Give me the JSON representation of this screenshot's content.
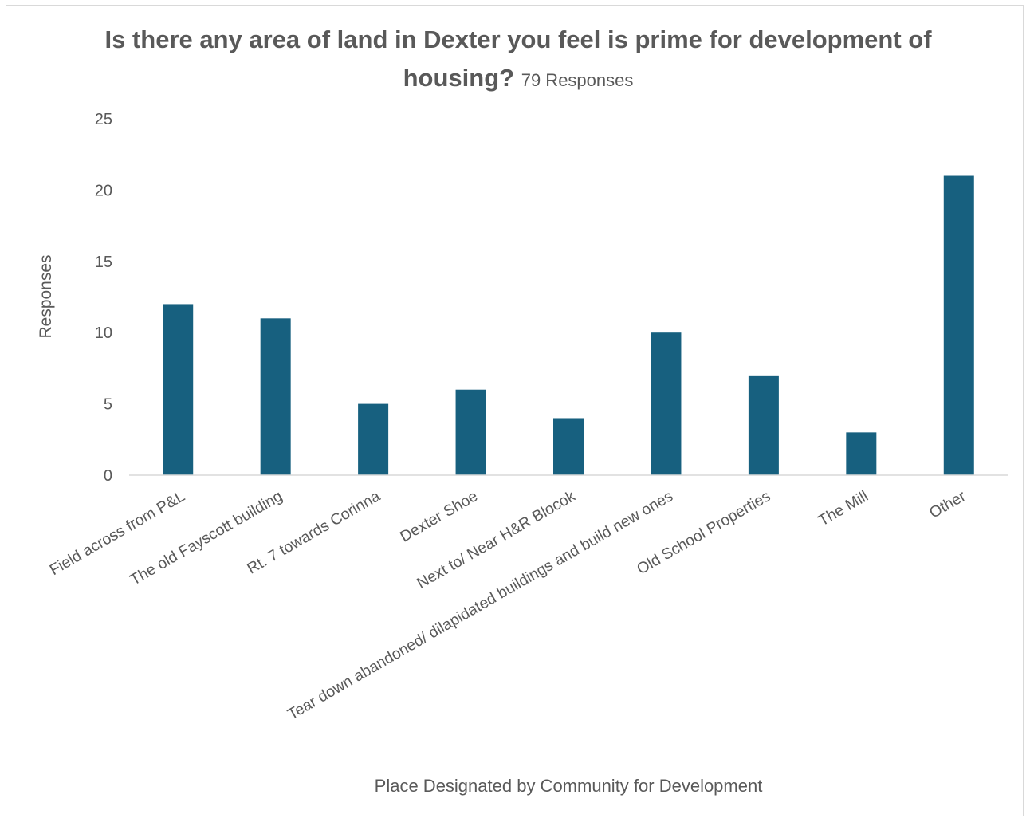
{
  "chart_data": {
    "type": "bar",
    "title": "Is there any area of land in Dexter you feel is prime for development of housing?",
    "subtitle": "79 Responses",
    "xlabel": "Place Designated by Community for Development",
    "ylabel": "Responses",
    "categories": [
      "Field across from P&L",
      "The old Fayscott building",
      "Rt. 7 towards Corinna",
      "Dexter Shoe",
      "Next to/ Near H&R Blocok",
      "Tear down abandoned/ dilapidated buildings and build new ones",
      "Old School Properties",
      "The Mill",
      "Other"
    ],
    "values": [
      12,
      11,
      5,
      6,
      4,
      10,
      7,
      3,
      21
    ],
    "ylim": [
      0,
      25
    ],
    "yticks": [
      "0",
      "5",
      "10",
      "15",
      "20",
      "25"
    ],
    "grid": false,
    "legend": "none",
    "colors": {
      "bar": "#17607f",
      "text": "#595959",
      "axis": "#d9d9d9"
    }
  }
}
